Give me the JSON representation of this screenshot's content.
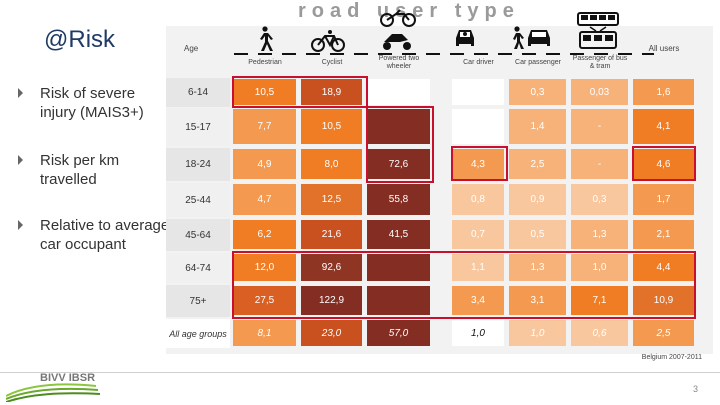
{
  "slide": {
    "title": "@Risk",
    "road_title": "road user type",
    "bullets": [
      "Risk of severe injury (MAIS3+)",
      "Risk per km travelled",
      "Relative to average car occupant"
    ],
    "source": "Belgium 2007-2011",
    "page": "3",
    "logo_text": "BIVV IBSR"
  },
  "table": {
    "age_header": "Age",
    "columns": [
      "Pedestrian",
      "Cyclist",
      "Powered two wheeler",
      "Car driver",
      "Car passenger",
      "Passenger of bus & tram",
      "All users"
    ],
    "column_icons": [
      "pedestrian-icon",
      "cyclist-icon",
      "motorcycle-icon",
      "car-driver-icon",
      "car-passenger-icon",
      "bus-tram-icon",
      ""
    ],
    "rows": [
      {
        "age": "6-14",
        "values": [
          "10,5",
          "18,9",
          "",
          "",
          "0,3",
          "0,03",
          "1,6"
        ]
      },
      {
        "age": "15-17",
        "values": [
          "7,7",
          "10,5",
          "",
          "",
          "1,4",
          "-",
          "4,1"
        ]
      },
      {
        "age": "18-24",
        "values": [
          "4,9",
          "8,0",
          "72,6",
          "4,3",
          "2,5",
          "-",
          "4,6"
        ]
      },
      {
        "age": "25-44",
        "values": [
          "4,7",
          "12,5",
          "55,8",
          "0,8",
          "0,9",
          "0,3",
          "1,7"
        ]
      },
      {
        "age": "45-64",
        "values": [
          "6,2",
          "21,6",
          "41,5",
          "0,7",
          "0,5",
          "1,3",
          "2,1"
        ]
      },
      {
        "age": "64-74",
        "values": [
          "12,0",
          "92,6",
          "",
          "1,1",
          "1,3",
          "1,0",
          "4,4"
        ]
      },
      {
        "age": "75+",
        "values": [
          "27,5",
          "122,9",
          "",
          "3,4",
          "3,1",
          "7,1",
          "10,9"
        ]
      },
      {
        "age": "All age groups",
        "values": [
          "8,1",
          "23,0",
          "57,0",
          "1,0",
          "1,0",
          "0,6",
          "2,5"
        ]
      }
    ],
    "colors": [
      [
        "#f07d24",
        "#c9501f",
        "#ffffff",
        "#ffffff",
        "#f7b27a",
        "#f7b27a",
        "#f49a50"
      ],
      [
        "#f49a50",
        "#f07d24",
        "#842d22",
        "#ffffff",
        "#f7b27a",
        "#f7b27a",
        "#f07d24"
      ],
      [
        "#f49a50",
        "#f07d24",
        "#842d22",
        "#f49a50",
        "#f7b27a",
        "#f7b27a",
        "#f07d24"
      ],
      [
        "#f49a50",
        "#e2722a",
        "#842d22",
        "#f9c79d",
        "#f9c79d",
        "#f9c79d",
        "#f49a50"
      ],
      [
        "#f07d24",
        "#c9501f",
        "#842d22",
        "#f9c79d",
        "#f9c79d",
        "#f7b27a",
        "#f49a50"
      ],
      [
        "#f07d24",
        "#8e3524",
        "#842d22",
        "#f9c79d",
        "#f7b27a",
        "#f7b27a",
        "#f07d24"
      ],
      [
        "#d95f22",
        "#842d22",
        "#842d22",
        "#f49a50",
        "#f49a50",
        "#f07d24",
        "#e2722a"
      ],
      [
        "#f49a50",
        "#c9501f",
        "#842d22",
        "#ffffff",
        "#f9c79d",
        "#f9c79d",
        "#f49a50"
      ]
    ],
    "highlight_color": "#c8102e"
  }
}
